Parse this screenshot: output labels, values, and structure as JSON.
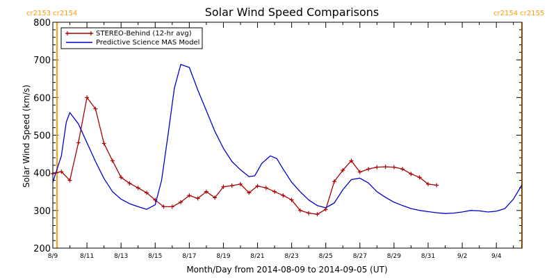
{
  "chart_data": {
    "type": "line",
    "title": "Solar Wind Speed Comparisons",
    "xlabel": "Month/Day from 2014-08-09 to 2014-09-05 (UT)",
    "ylabel": "Solar Wind Speed (km/s)",
    "xlim": [
      "2014-08-09",
      "2014-09-05T12:00"
    ],
    "ylim": [
      200,
      800
    ],
    "x_ticks": [
      "2014-08-09",
      "2014-08-11",
      "2014-08-13",
      "2014-08-15",
      "2014-08-17",
      "2014-08-19",
      "2014-08-21",
      "2014-08-23",
      "2014-08-25",
      "2014-08-27",
      "2014-08-29",
      "2014-08-31",
      "2014-09-02",
      "2014-09-04"
    ],
    "x_tick_labels": [
      "8/9",
      "8/11",
      "8/13",
      "8/15",
      "8/17",
      "8/19",
      "8/21",
      "8/23",
      "8/25",
      "8/27",
      "8/29",
      "8/31",
      "9/2",
      "9/4"
    ],
    "y_ticks": [
      200,
      300,
      400,
      500,
      600,
      700,
      800
    ],
    "legend_placement": "top-left",
    "carrington_markers": [
      {
        "x": "2014-08-09T06:00",
        "label": "cr2153 cr2154",
        "color": "#ff9900"
      },
      {
        "x": "2014-09-05T12:00",
        "label": "cr2154 cr2155",
        "color": "#ff9900"
      }
    ],
    "series": [
      {
        "name": "STEREO-Behind (12-hr avg)",
        "color": "#aa0000",
        "marker": "+",
        "points": [
          [
            "2014-08-09T00:00",
            398
          ],
          [
            "2014-08-09T12:00",
            403
          ],
          [
            "2014-08-10T00:00",
            380
          ],
          [
            "2014-08-10T12:00",
            480
          ],
          [
            "2014-08-11T00:00",
            600
          ],
          [
            "2014-08-11T12:00",
            570
          ],
          [
            "2014-08-12T00:00",
            478
          ],
          [
            "2014-08-12T12:00",
            432
          ],
          [
            "2014-08-13T00:00",
            388
          ],
          [
            "2014-08-13T12:00",
            372
          ],
          [
            "2014-08-14T00:00",
            360
          ],
          [
            "2014-08-14T12:00",
            347
          ],
          [
            "2014-08-15T00:00",
            328
          ],
          [
            "2014-08-15T12:00",
            310
          ],
          [
            "2014-08-16T00:00",
            310
          ],
          [
            "2014-08-16T12:00",
            322
          ],
          [
            "2014-08-17T00:00",
            340
          ],
          [
            "2014-08-17T12:00",
            332
          ],
          [
            "2014-08-18T00:00",
            350
          ],
          [
            "2014-08-18T12:00",
            334
          ],
          [
            "2014-08-19T00:00",
            363
          ],
          [
            "2014-08-19T12:00",
            366
          ],
          [
            "2014-08-20T00:00",
            370
          ],
          [
            "2014-08-20T12:00",
            347
          ],
          [
            "2014-08-21T00:00",
            365
          ],
          [
            "2014-08-21T12:00",
            360
          ],
          [
            "2014-08-22T00:00",
            350
          ],
          [
            "2014-08-22T12:00",
            340
          ],
          [
            "2014-08-23T00:00",
            328
          ],
          [
            "2014-08-23T12:00",
            300
          ],
          [
            "2014-08-24T00:00",
            293
          ],
          [
            "2014-08-24T12:00",
            290
          ],
          [
            "2014-08-25T00:00",
            303
          ],
          [
            "2014-08-25T12:00",
            377
          ],
          [
            "2014-08-26T00:00",
            407
          ],
          [
            "2014-08-26T12:00",
            432
          ],
          [
            "2014-08-27T00:00",
            402
          ],
          [
            "2014-08-27T12:00",
            410
          ],
          [
            "2014-08-28T00:00",
            415
          ],
          [
            "2014-08-28T12:00",
            416
          ],
          [
            "2014-08-29T00:00",
            415
          ],
          [
            "2014-08-29T12:00",
            410
          ],
          [
            "2014-08-30T00:00",
            397
          ],
          [
            "2014-08-30T12:00",
            388
          ],
          [
            "2014-08-31T00:00",
            370
          ],
          [
            "2014-08-31T12:00",
            367
          ]
        ]
      },
      {
        "name": "Predictive Science MAS Model",
        "color": "#0000cc",
        "marker": "none",
        "points": [
          [
            "2014-08-09T00:00",
            375
          ],
          [
            "2014-08-09T12:00",
            445
          ],
          [
            "2014-08-09T19:00",
            535
          ],
          [
            "2014-08-10T00:00",
            560
          ],
          [
            "2014-08-10T12:00",
            530
          ],
          [
            "2014-08-11T00:00",
            480
          ],
          [
            "2014-08-11T12:00",
            430
          ],
          [
            "2014-08-12T00:00",
            385
          ],
          [
            "2014-08-12T12:00",
            350
          ],
          [
            "2014-08-13T00:00",
            330
          ],
          [
            "2014-08-13T12:00",
            318
          ],
          [
            "2014-08-14T00:00",
            310
          ],
          [
            "2014-08-14T12:00",
            303
          ],
          [
            "2014-08-15T00:00",
            315
          ],
          [
            "2014-08-15T09:00",
            380
          ],
          [
            "2014-08-15T18:00",
            500
          ],
          [
            "2014-08-16T03:00",
            625
          ],
          [
            "2014-08-16T12:00",
            688
          ],
          [
            "2014-08-17T00:00",
            680
          ],
          [
            "2014-08-17T12:00",
            620
          ],
          [
            "2014-08-18T00:00",
            565
          ],
          [
            "2014-08-18T12:00",
            510
          ],
          [
            "2014-08-19T00:00",
            465
          ],
          [
            "2014-08-19T12:00",
            430
          ],
          [
            "2014-08-20T00:00",
            408
          ],
          [
            "2014-08-20T12:00",
            390
          ],
          [
            "2014-08-20T20:00",
            392
          ],
          [
            "2014-08-21T06:00",
            425
          ],
          [
            "2014-08-21T18:00",
            445
          ],
          [
            "2014-08-22T03:00",
            438
          ],
          [
            "2014-08-22T12:00",
            410
          ],
          [
            "2014-08-23T00:00",
            375
          ],
          [
            "2014-08-23T12:00",
            350
          ],
          [
            "2014-08-24T00:00",
            328
          ],
          [
            "2014-08-24T12:00",
            313
          ],
          [
            "2014-08-25T00:00",
            307
          ],
          [
            "2014-08-25T12:00",
            320
          ],
          [
            "2014-08-26T00:00",
            355
          ],
          [
            "2014-08-26T12:00",
            382
          ],
          [
            "2014-08-27T00:00",
            386
          ],
          [
            "2014-08-27T12:00",
            373
          ],
          [
            "2014-08-28T00:00",
            350
          ],
          [
            "2014-08-28T12:00",
            335
          ],
          [
            "2014-08-29T00:00",
            322
          ],
          [
            "2014-08-29T12:00",
            313
          ],
          [
            "2014-08-30T00:00",
            305
          ],
          [
            "2014-08-30T12:00",
            300
          ],
          [
            "2014-08-31T00:00",
            297
          ],
          [
            "2014-08-31T12:00",
            294
          ],
          [
            "2014-09-01T00:00",
            292
          ],
          [
            "2014-09-01T12:00",
            293
          ],
          [
            "2014-09-02T00:00",
            296
          ],
          [
            "2014-09-02T12:00",
            300
          ],
          [
            "2014-09-03T00:00",
            299
          ],
          [
            "2014-09-03T12:00",
            296
          ],
          [
            "2014-09-04T00:00",
            298
          ],
          [
            "2014-09-04T12:00",
            305
          ],
          [
            "2014-09-05T00:00",
            330
          ],
          [
            "2014-09-05T12:00",
            368
          ]
        ]
      }
    ]
  }
}
